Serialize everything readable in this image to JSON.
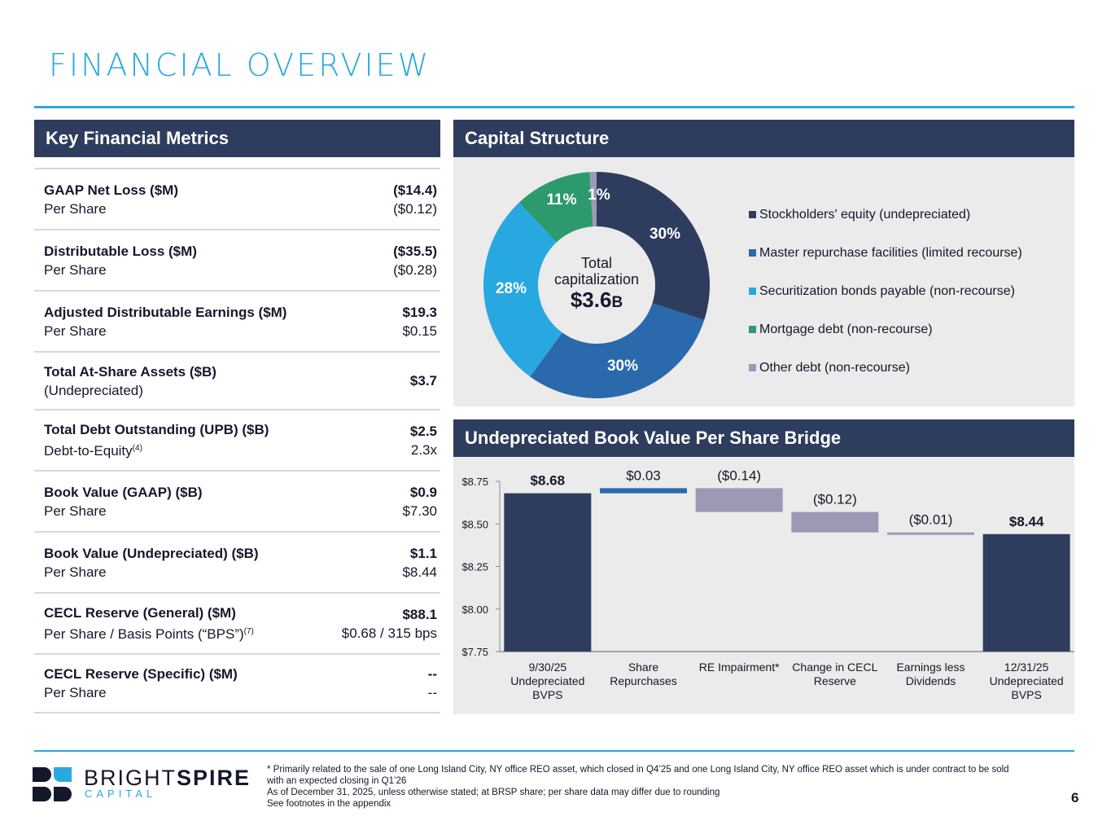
{
  "page": {
    "title": "FINANCIAL OVERVIEW",
    "page_number": "6"
  },
  "colors": {
    "accent": "#29a9e0",
    "header_bg": "#2e3d5e",
    "panel_bg": "#ebebeb",
    "equity": "#2e3d5e",
    "repo": "#2a69ab",
    "securitization": "#28a8e0",
    "mortgage": "#2c9a6c",
    "other_debt": "#9d99b5",
    "bridge_total": "#2e3d5e",
    "bridge_increase": "#2a69ab",
    "bridge_decrease": "#9d99b5"
  },
  "metrics": {
    "header": "Key Financial Metrics",
    "rows": [
      {
        "label": "GAAP Net Loss ($M)",
        "sublabel": "Per Share",
        "sup": "",
        "value": "($14.4)",
        "subvalue": "($0.12)"
      },
      {
        "label": "Distributable Loss ($M)",
        "sublabel": "Per Share",
        "sup": "",
        "value": "($35.5)",
        "subvalue": "($0.28)"
      },
      {
        "label": "Adjusted Distributable Earnings ($M)",
        "sublabel": "Per Share",
        "sup": "",
        "value": "$19.3",
        "subvalue": "$0.15"
      },
      {
        "label": "Total At-Share Assets ($B)",
        "sublabel": "(Undepreciated)",
        "sup": "",
        "value": "$3.7",
        "subvalue": ""
      },
      {
        "label": "Total Debt Outstanding (UPB) ($B)",
        "sublabel": "Debt-to-Equity",
        "sup": "(4)",
        "value": "$2.5",
        "subvalue": "2.3x"
      },
      {
        "label": "Book Value (GAAP) ($B)",
        "sublabel": "Per Share",
        "sup": "",
        "value": "$0.9",
        "subvalue": "$7.30"
      },
      {
        "label": "Book Value (Undepreciated) ($B)",
        "sublabel": "Per Share",
        "sup": "",
        "value": "$1.1",
        "subvalue": "$8.44"
      },
      {
        "label": "CECL Reserve (General) ($M)",
        "sublabel": "Per Share / Basis Points (“BPS”)",
        "sup": "(7)",
        "value": "$88.1",
        "subvalue": "$0.68 / 315 bps"
      },
      {
        "label": "CECL Reserve (Specific) ($M)",
        "sublabel": "Per Share",
        "sup": "",
        "value": "--",
        "subvalue": "--"
      }
    ]
  },
  "capital_structure": {
    "header": "Capital Structure",
    "center_line1": "Total",
    "center_line2": "capitalization",
    "center_value": "$3.6",
    "center_unit": "B"
  },
  "bridge": {
    "header": "Undepreciated Book Value Per Share Bridge"
  },
  "chart_data": [
    {
      "type": "pie",
      "title": "Capital Structure",
      "donut": true,
      "center_label": "Total capitalization $3.6B",
      "categories": [
        "Stockholders' equity (undepreciated)",
        "Master repurchase facilities (limited recourse)",
        "Securitization bonds payable (non-recourse)",
        "Mortgage debt (non-recourse)",
        "Other debt (non-recourse)"
      ],
      "values": [
        30,
        30,
        28,
        11,
        1
      ],
      "labels": [
        "30%",
        "30%",
        "28%",
        "11%",
        "1%"
      ],
      "colors": [
        "#2e3d5e",
        "#2a69ab",
        "#28a8e0",
        "#2c9a6c",
        "#9d99b5"
      ],
      "legend": "right"
    },
    {
      "type": "bar",
      "subtype": "waterfall",
      "title": "Undepreciated Book Value Per Share Bridge",
      "categories": [
        [
          "9/30/25",
          "Undepreciated",
          "BVPS"
        ],
        [
          "Share",
          "Repurchases"
        ],
        [
          "RE Impairment*"
        ],
        [
          "Change in CECL",
          "Reserve"
        ],
        [
          "Earnings less",
          "Dividends"
        ],
        [
          "12/31/25",
          "Undepreciated",
          "BVPS"
        ]
      ],
      "steps": [
        {
          "kind": "total",
          "value": 8.68,
          "label": "$8.68"
        },
        {
          "kind": "delta",
          "value": 0.03,
          "label": "$0.03"
        },
        {
          "kind": "delta",
          "value": -0.14,
          "label": "($0.14)"
        },
        {
          "kind": "delta",
          "value": -0.12,
          "label": "($0.12)"
        },
        {
          "kind": "delta",
          "value": -0.01,
          "label": "($0.01)"
        },
        {
          "kind": "total",
          "value": 8.44,
          "label": "$8.44"
        }
      ],
      "ylim": [
        7.75,
        8.75
      ],
      "yticks": [
        "$7.75",
        "$8.00",
        "$8.25",
        "$8.50",
        "$8.75"
      ],
      "ytick_values": [
        7.75,
        8.0,
        8.25,
        8.5,
        8.75
      ],
      "grid": false,
      "xlabel": "",
      "ylabel": ""
    }
  ],
  "logo": {
    "word_light": "BRIGHT",
    "word_bold": "SPIRE",
    "sub": "CAPITAL"
  },
  "footnotes": [
    "* Primarily related to the sale of one Long Island City, NY office REO asset, which closed in Q4’25 and one Long Island City, NY office REO asset which is under contract to be sold with an expected closing in Q1’26",
    "As of December 31, 2025, unless otherwise stated; at BRSP share; per share data may differ due to rounding",
    "See footnotes in the appendix"
  ]
}
